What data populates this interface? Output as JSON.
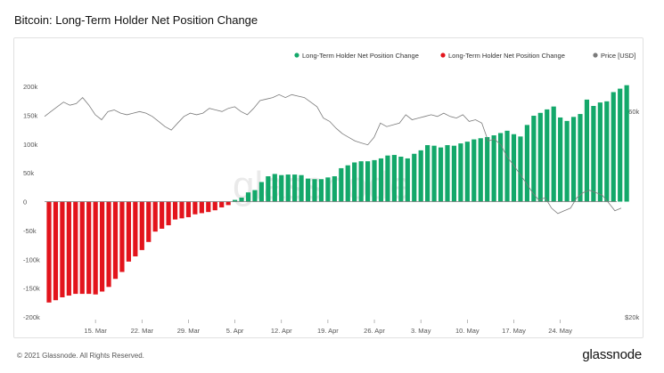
{
  "title": "Bitcoin: Long-Term Holder Net Position Change",
  "footer": {
    "copyright": "© 2021 Glassnode. All Rights Reserved.",
    "brand": "glassnode"
  },
  "colors": {
    "positive": "#13a86a",
    "negative": "#e3141c",
    "price": "#7a7a7a",
    "zero": "#777777"
  },
  "chart_data": {
    "type": "bar",
    "legend": [
      {
        "label": "Long-Term Holder Net Position Change",
        "color": "#13a86a",
        "icon": "dot"
      },
      {
        "label": "Long-Term Holder Net Position Change",
        "color": "#e3141c",
        "icon": "dot"
      },
      {
        "label": "Price [USD]",
        "color": "#7a7a7a",
        "icon": "dot"
      }
    ],
    "legend_position": "top-right",
    "x_ticks": [
      "15. Mar",
      "22. Mar",
      "29. Mar",
      "5. Apr",
      "12. Apr",
      "19. Apr",
      "26. Apr",
      "3. May",
      "10. May",
      "17. May",
      "24. May"
    ],
    "x_tick_day_index": [
      7,
      14,
      21,
      28,
      35,
      42,
      49,
      56,
      63,
      70,
      77
    ],
    "y_left": {
      "ticks": [
        "200k",
        "150k",
        "100k",
        "50k",
        "0",
        "-50k",
        "-100k",
        "-150k",
        "-200k"
      ],
      "min": -200000,
      "max": 200000
    },
    "y_right": {
      "ticks": [
        "$60k",
        "$20k"
      ],
      "scale": "log",
      "min": 20000,
      "max": 62000
    },
    "grid": false,
    "series": [
      {
        "name": "Long-Term Holder Net Position Change",
        "kind": "bar",
        "values": [
          -175000,
          -171000,
          -166000,
          -163000,
          -160000,
          -160000,
          -160000,
          -161000,
          -156000,
          -148000,
          -134000,
          -122000,
          -104000,
          -95000,
          -84000,
          -70000,
          -52000,
          -47000,
          -41000,
          -31000,
          -29000,
          -27000,
          -22000,
          -20000,
          -18000,
          -15000,
          -10000,
          -6000,
          3000,
          7000,
          16000,
          20000,
          34000,
          44000,
          48000,
          46000,
          47000,
          47000,
          46000,
          40000,
          39000,
          39000,
          42000,
          44000,
          58000,
          63000,
          68000,
          70000,
          70000,
          72000,
          75000,
          80000,
          81000,
          78000,
          75000,
          83000,
          89000,
          98000,
          97000,
          94000,
          98000,
          97000,
          101000,
          104000,
          108000,
          110000,
          112000,
          115000,
          119000,
          123000,
          117000,
          113000,
          133000,
          149000,
          154000,
          160000,
          165000,
          146000,
          140000,
          147000,
          152000,
          177000,
          166000,
          172000,
          174000,
          190000,
          196000,
          202000
        ]
      },
      {
        "name": "Price [USD]",
        "kind": "line",
        "axis": "right",
        "values": [
          57000,
          58500,
          60000,
          61500,
          60500,
          61000,
          63000,
          60500,
          57500,
          56000,
          58500,
          59000,
          58000,
          57500,
          58000,
          58500,
          58000,
          57000,
          55500,
          54000,
          53000,
          55000,
          57000,
          58000,
          57500,
          58000,
          59500,
          59000,
          58500,
          59500,
          60000,
          58500,
          57500,
          59500,
          62000,
          62500,
          63000,
          64000,
          63000,
          64000,
          63500,
          63000,
          61500,
          60000,
          56500,
          55500,
          53500,
          52000,
          51000,
          50000,
          49500,
          49000,
          51000,
          55000,
          54000,
          54500,
          55000,
          57500,
          56000,
          56500,
          57000,
          57500,
          57000,
          58000,
          57000,
          56500,
          57500,
          55500,
          56000,
          55000,
          50000,
          50500,
          49000,
          46000,
          44000,
          42000,
          40000,
          38000,
          36500,
          37000,
          35000,
          34000,
          34500,
          35000,
          37000,
          38000,
          38500,
          38000,
          37500,
          36000,
          34500,
          35000
        ]
      }
    ]
  }
}
